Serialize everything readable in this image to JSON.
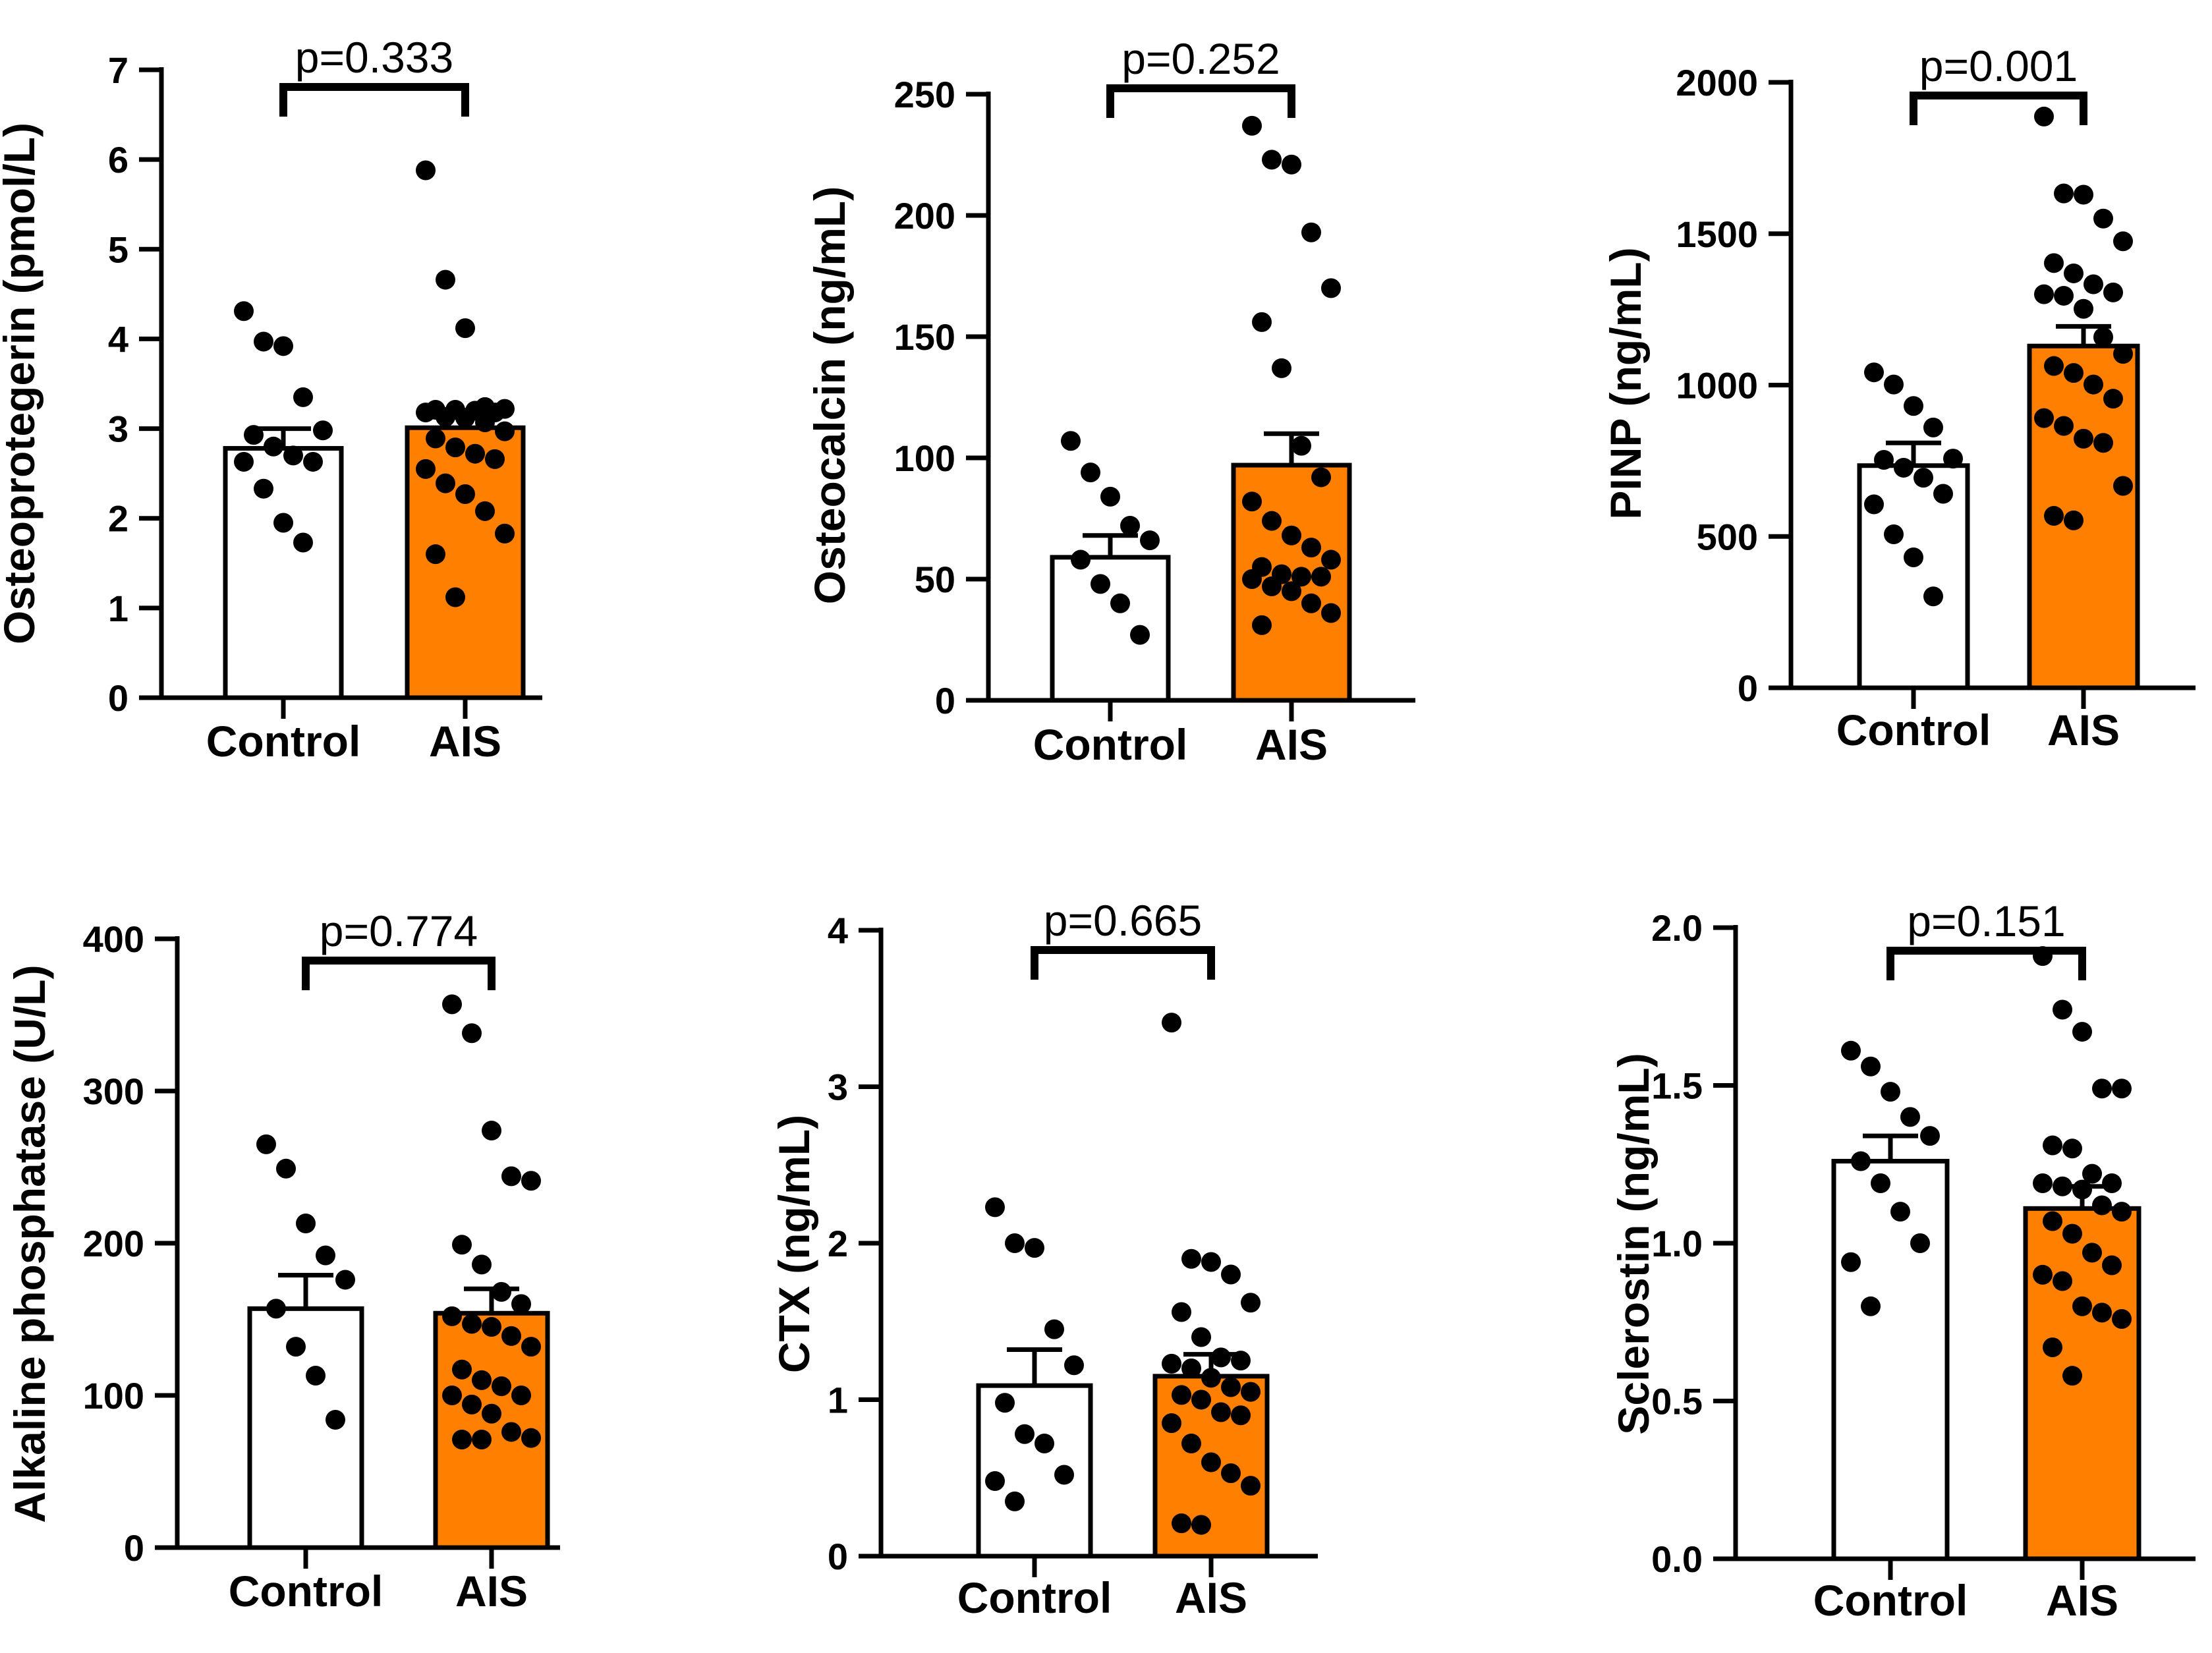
{
  "colors": {
    "control": "#ffffff",
    "ais": "#ff7f00",
    "ink": "#000000"
  },
  "chart_data": [
    {
      "type": "bar",
      "ylabel": "Osteoprotegerin (pmol/L)",
      "categories": [
        "Control",
        "AIS"
      ],
      "ylim": [
        0,
        7
      ],
      "yticks": [
        0,
        1,
        2,
        3,
        4,
        5,
        6,
        7
      ],
      "ytick_labels": [
        "0",
        "1",
        "2",
        "3",
        "4",
        "5",
        "6",
        "7"
      ],
      "means": [
        2.78,
        3.01
      ],
      "sem": [
        0.22,
        0.14
      ],
      "p_label": "p=0.333",
      "points": [
        [
          4.31,
          3.97,
          3.92,
          3.35,
          2.98,
          2.93,
          2.8,
          2.7,
          2.63,
          2.63,
          2.33,
          1.95,
          1.73
        ],
        [
          5.88,
          4.66,
          4.12,
          3.24,
          3.22,
          3.21,
          3.21,
          3.2,
          3.18,
          3.18,
          3.13,
          3.12,
          3.07,
          2.97,
          2.89,
          2.79,
          2.72,
          2.66,
          2.55,
          2.39,
          2.27,
          2.08,
          1.83,
          1.6,
          1.12
        ]
      ]
    },
    {
      "type": "bar",
      "ylabel": "Osteocalcin (ng/mL)",
      "categories": [
        "Control",
        "AIS"
      ],
      "ylim": [
        0,
        260
      ],
      "yticks": [
        0,
        50,
        100,
        150,
        200,
        250
      ],
      "ytick_labels": [
        "0",
        "50",
        "100",
        "150",
        "200",
        "250"
      ],
      "means": [
        59,
        97
      ],
      "sem": [
        9,
        13
      ],
      "p_label": "p=0.252",
      "points": [
        [
          107,
          94,
          84,
          72,
          66,
          58,
          48,
          40,
          27
        ],
        [
          237,
          223,
          221,
          193,
          170,
          156,
          137,
          105,
          92,
          82,
          74,
          68,
          63,
          58,
          55,
          52,
          51,
          51,
          50,
          47,
          45,
          40,
          36,
          31
        ]
      ]
    },
    {
      "type": "bar",
      "ylabel": "PINP (ng/mL)",
      "categories": [
        "Control",
        "AIS"
      ],
      "ylim": [
        0,
        2000
      ],
      "yticks": [
        0,
        500,
        1000,
        1500,
        2000
      ],
      "ytick_labels": [
        "0",
        "500",
        "1000",
        "1500",
        "2000"
      ],
      "means": [
        734,
        1129
      ],
      "sem": [
        75,
        65
      ],
      "p_label": "p=0.001",
      "points": [
        [
          1042,
          1002,
          931,
          860,
          757,
          753,
          727,
          694,
          641,
          606,
          507,
          431,
          302
        ],
        [
          1887,
          1633,
          1629,
          1550,
          1475,
          1403,
          1369,
          1333,
          1306,
          1300,
          1295,
          1252,
          1158,
          1103,
          1063,
          1040,
          1002,
          955,
          891,
          865,
          823,
          809,
          667,
          568,
          553
        ]
      ]
    },
    {
      "type": "bar",
      "ylabel": "Alkaline phosphatase (U/L)",
      "categories": [
        "Control",
        "AIS"
      ],
      "ylim": [
        0,
        400
      ],
      "yticks": [
        0,
        100,
        200,
        300,
        400
      ],
      "ytick_labels": [
        "0",
        "100",
        "200",
        "300",
        "400"
      ],
      "means": [
        157,
        154
      ],
      "sem": [
        22,
        16
      ],
      "p_label": "p=0.774",
      "points": [
        [
          265,
          249,
          213,
          192,
          176,
          157,
          132,
          113,
          84
        ],
        [
          357,
          338,
          274,
          244,
          241,
          199,
          186,
          168,
          160,
          152,
          147,
          145,
          139,
          132,
          117,
          110,
          106,
          100,
          100,
          94,
          88,
          76,
          72,
          71,
          71
        ]
      ]
    },
    {
      "type": "bar",
      "ylabel": "CTX (ng/mL)",
      "categories": [
        "Control",
        "AIS"
      ],
      "ylim": [
        0,
        4
      ],
      "yticks": [
        0,
        1,
        2,
        3,
        4
      ],
      "ytick_labels": [
        "0",
        "1",
        "2",
        "3",
        "4"
      ],
      "means": [
        1.09,
        1.15
      ],
      "sem": [
        0.23,
        0.14
      ],
      "p_label": "p=0.665",
      "points": [
        [
          2.23,
          2.0,
          1.97,
          1.45,
          1.22,
          0.98,
          0.78,
          0.72,
          0.52,
          0.48,
          0.35
        ],
        [
          3.41,
          1.9,
          1.88,
          1.8,
          1.62,
          1.56,
          1.4,
          1.27,
          1.25,
          1.23,
          1.2,
          1.14,
          1.08,
          1.05,
          1.03,
          1.0,
          0.92,
          0.9,
          0.85,
          0.72,
          0.6,
          0.53,
          0.45,
          0.21,
          0.2
        ]
      ]
    },
    {
      "type": "bar",
      "ylabel": "Sclerostin (ng/mL)",
      "categories": [
        "Control",
        "AIS"
      ],
      "ylim": [
        0,
        2.0
      ],
      "yticks": [
        0,
        0.5,
        1.0,
        1.5,
        2.0
      ],
      "ytick_labels": [
        "0.0",
        "0.5",
        "1.0",
        "1.5",
        "2.0"
      ],
      "means": [
        1.26,
        1.11
      ],
      "sem": [
        0.08,
        0.07
      ],
      "p_label": "p=0.151",
      "points": [
        [
          1.61,
          1.56,
          1.48,
          1.4,
          1.34,
          1.26,
          1.19,
          1.1,
          1.0,
          0.94,
          0.8
        ],
        [
          1.91,
          1.74,
          1.67,
          1.49,
          1.49,
          1.31,
          1.3,
          1.22,
          1.19,
          1.19,
          1.18,
          1.17,
          1.12,
          1.1,
          1.07,
          1.03,
          0.97,
          0.93,
          0.9,
          0.88,
          0.8,
          0.78,
          0.76,
          0.67,
          0.58
        ]
      ]
    }
  ]
}
